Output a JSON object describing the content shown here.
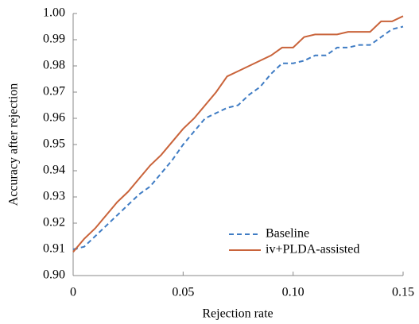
{
  "chart_data": {
    "type": "line",
    "xlabel": "Rejection rate",
    "ylabel": "Accuracy after rejection",
    "x": [
      0,
      0.005,
      0.01,
      0.015,
      0.02,
      0.025,
      0.03,
      0.035,
      0.04,
      0.045,
      0.05,
      0.055,
      0.06,
      0.065,
      0.07,
      0.075,
      0.08,
      0.085,
      0.09,
      0.095,
      0.1,
      0.105,
      0.11,
      0.115,
      0.12,
      0.125,
      0.13,
      0.135,
      0.14,
      0.145,
      0.15
    ],
    "series": [
      {
        "name": "Baseline",
        "color": "#3f7cc4",
        "dash": true,
        "values": [
          0.91,
          0.911,
          0.915,
          0.919,
          0.923,
          0.927,
          0.931,
          0.934,
          0.939,
          0.944,
          0.95,
          0.955,
          0.96,
          0.962,
          0.964,
          0.965,
          0.969,
          0.972,
          0.977,
          0.981,
          0.981,
          0.982,
          0.984,
          0.984,
          0.987,
          0.987,
          0.988,
          0.988,
          0.991,
          0.994,
          0.995
        ]
      },
      {
        "name": "iv+PLDA-assisted",
        "color": "#c9633a",
        "dash": false,
        "values": [
          0.909,
          0.914,
          0.918,
          0.923,
          0.928,
          0.932,
          0.937,
          0.942,
          0.946,
          0.951,
          0.956,
          0.96,
          0.965,
          0.97,
          0.976,
          0.978,
          0.98,
          0.982,
          0.984,
          0.987,
          0.987,
          0.991,
          0.992,
          0.992,
          0.992,
          0.993,
          0.993,
          0.993,
          0.997,
          0.997,
          0.999
        ]
      }
    ],
    "xlim": [
      0,
      0.15
    ],
    "xticks": [
      0,
      0.05,
      {
        "value": 0.1,
        "label": "0.10"
      },
      0.15
    ],
    "ylim": [
      0.9,
      1.0
    ],
    "yticks": [
      {
        "value": 0.9,
        "label": "0.90"
      },
      0.91,
      0.92,
      0.93,
      0.94,
      0.95,
      0.96,
      0.97,
      0.98,
      0.99,
      {
        "value": 1.0,
        "label": "1.00"
      }
    ],
    "grid": false,
    "legend": "lower-right"
  }
}
